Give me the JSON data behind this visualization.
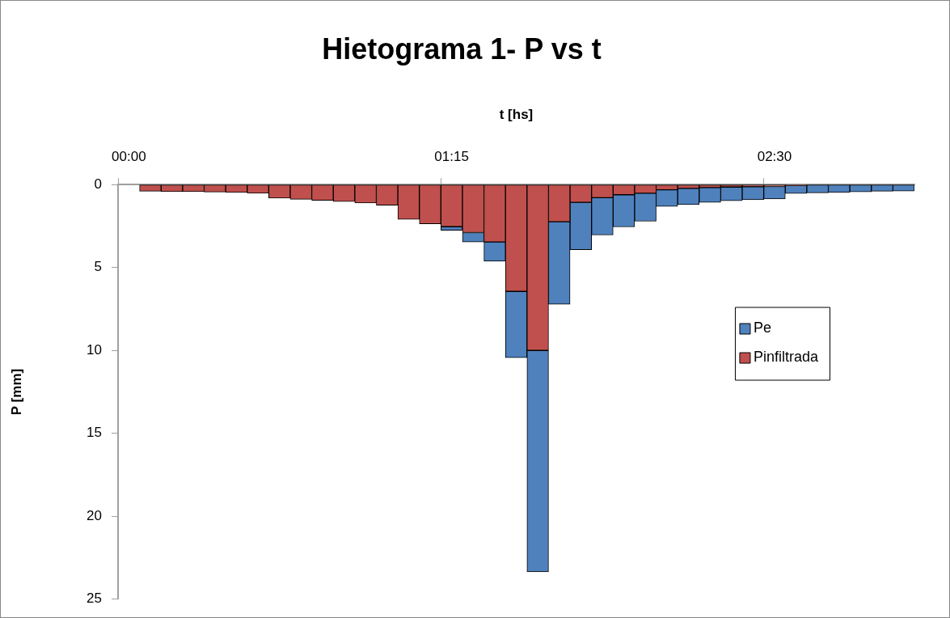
{
  "chart_data": {
    "type": "bar",
    "title": "Hietograma 1- P vs t",
    "xlabel": "t [hs]",
    "ylabel": "P [mm]",
    "categories": [
      "00:00",
      null,
      null,
      null,
      null,
      null,
      null,
      null,
      null,
      null,
      null,
      null,
      null,
      null,
      null,
      "01:15",
      null,
      null,
      null,
      null,
      null,
      null,
      null,
      null,
      null,
      null,
      null,
      null,
      null,
      null,
      "02:30",
      null,
      null,
      null,
      null,
      null,
      null
    ],
    "stacked": true,
    "series": [
      {
        "name": "Pinfiltrada",
        "color": "#c0504d",
        "values": [
          null,
          0.4,
          0.42,
          0.43,
          0.45,
          0.47,
          0.52,
          0.82,
          0.89,
          0.95,
          1.02,
          1.11,
          1.24,
          2.1,
          2.37,
          2.54,
          2.89,
          3.46,
          6.44,
          10.0,
          2.24,
          1.07,
          0.79,
          0.61,
          0.52,
          0.31,
          0.23,
          0.18,
          0.15,
          0.13,
          0.11,
          0.06,
          0,
          0,
          0,
          0,
          0
        ]
      },
      {
        "name": "Pe",
        "color": "#4f81bd",
        "values": [
          null,
          0,
          0,
          0,
          0,
          0,
          0,
          0,
          0,
          0,
          0,
          0,
          0,
          0,
          0,
          0.22,
          0.57,
          1.16,
          3.99,
          13.35,
          4.98,
          2.86,
          2.25,
          1.94,
          1.69,
          1.01,
          0.97,
          0.89,
          0.83,
          0.78,
          0.75,
          0.47,
          0.5,
          0.47,
          0.44,
          0.4,
          0.39
        ]
      }
    ],
    "ylim": [
      25,
      0
    ],
    "yticks": [
      0,
      5,
      10,
      15,
      20,
      25
    ],
    "legend": "right"
  }
}
